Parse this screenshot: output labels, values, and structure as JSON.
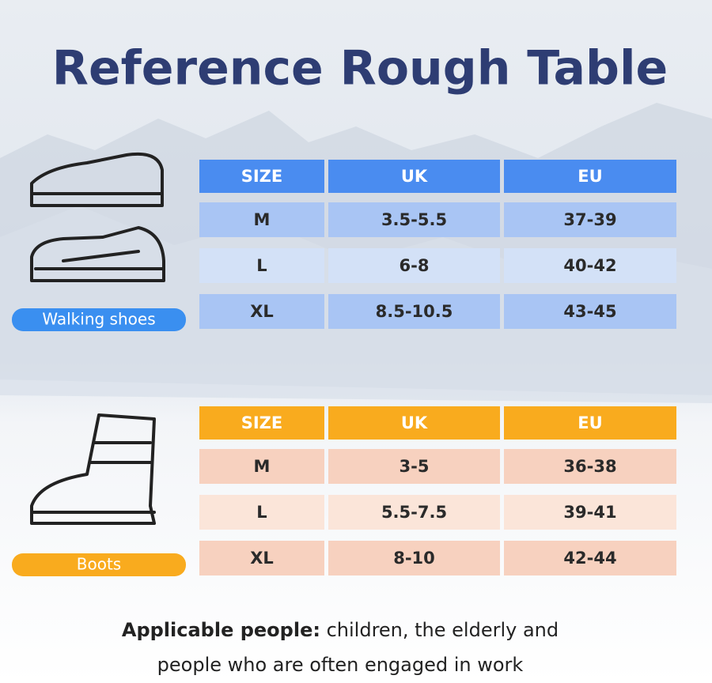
{
  "title": "Reference Rough Table",
  "walking": {
    "label": "Walking shoes",
    "header": [
      "SIZE",
      "UK",
      "EU"
    ],
    "rows": [
      [
        "M",
        "3.5-5.5",
        "37-39"
      ],
      [
        "L",
        "6-8",
        "40-42"
      ],
      [
        "XL",
        "8.5-10.5",
        "43-45"
      ]
    ]
  },
  "boots": {
    "label": "Boots",
    "header": [
      "SIZE",
      "UK",
      "EU"
    ],
    "rows": [
      [
        "M",
        "3-5",
        "36-38"
      ],
      [
        "L",
        "5.5-7.5",
        "39-41"
      ],
      [
        "XL",
        "8-10",
        "42-44"
      ]
    ]
  },
  "footer": {
    "bold": "Applicable people:",
    "line1": "children, the elderly and",
    "line2": "people who are often engaged in work"
  }
}
